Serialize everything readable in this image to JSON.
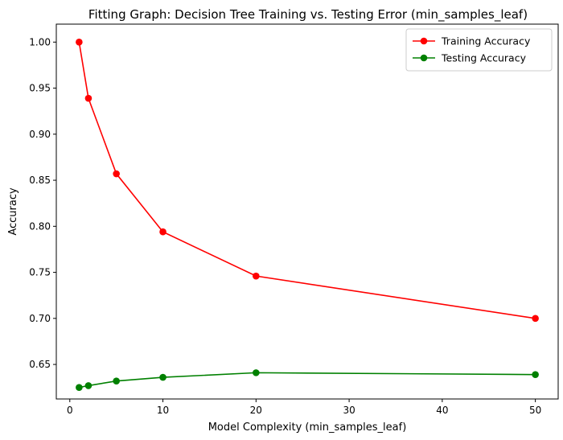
{
  "chart_data": {
    "type": "line",
    "title": "Fitting Graph: Decision Tree Training vs. Testing Error (min_samples_leaf)",
    "xlabel": "Model Complexity (min_samples_leaf)",
    "ylabel": "Accuracy",
    "x": [
      1,
      2,
      5,
      10,
      20,
      50
    ],
    "xlim": [
      -1.45,
      52.45
    ],
    "ylim": [
      0.6125,
      1.0195
    ],
    "xticks": [
      0,
      10,
      20,
      30,
      40,
      50
    ],
    "xtick_labels": [
      "0",
      "10",
      "20",
      "30",
      "40",
      "50"
    ],
    "yticks": [
      0.65,
      0.7,
      0.75,
      0.8,
      0.85,
      0.9,
      0.95,
      1.0
    ],
    "ytick_labels": [
      "0.65",
      "0.70",
      "0.75",
      "0.80",
      "0.85",
      "0.90",
      "0.95",
      "1.00"
    ],
    "grid": false,
    "legend_position": "top-right",
    "series": [
      {
        "name": "Training Accuracy",
        "color": "#ff0000",
        "marker": "circle",
        "values": [
          1.0,
          0.939,
          0.857,
          0.794,
          0.746,
          0.7
        ]
      },
      {
        "name": "Testing Accuracy",
        "color": "#008000",
        "marker": "circle",
        "values": [
          0.625,
          0.627,
          0.632,
          0.636,
          0.641,
          0.639
        ]
      }
    ]
  }
}
